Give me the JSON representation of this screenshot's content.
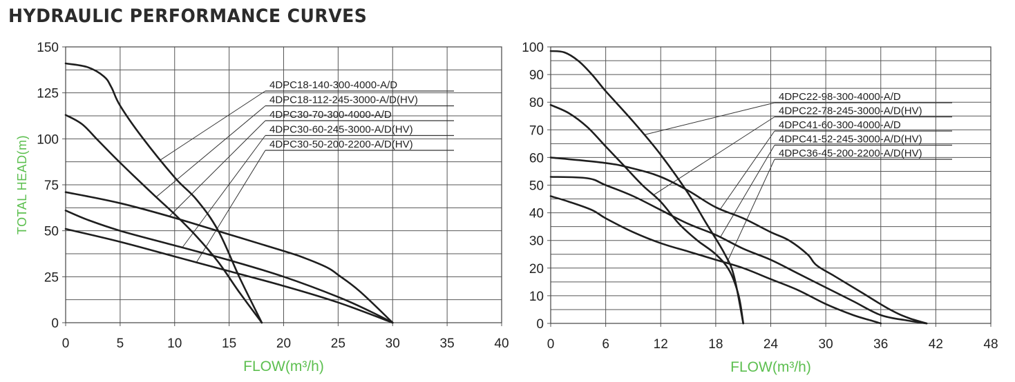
{
  "page": {
    "title": "HYDRAULIC PERFORMANCE CURVES"
  },
  "chart_data": [
    {
      "type": "line",
      "xlabel": "FLOW(m³/h)",
      "ylabel": "TOTAL HEAD(m)",
      "xlim": [
        0,
        40
      ],
      "ylim": [
        0,
        150
      ],
      "xticks": [
        0,
        5,
        10,
        15,
        20,
        25,
        30,
        35,
        40
      ],
      "yticks": [
        0,
        25,
        50,
        75,
        100,
        125,
        150
      ],
      "grid": true,
      "series": [
        {
          "name": "4DPC18-140-300-4000-A/D",
          "points": [
            [
              0,
              141
            ],
            [
              2,
              139
            ],
            [
              3.5,
              134
            ],
            [
              4.2,
              128
            ],
            [
              5,
              118
            ],
            [
              7,
              101
            ],
            [
              10,
              79
            ],
            [
              12,
              67
            ],
            [
              14,
              50
            ],
            [
              16,
              24
            ],
            [
              18,
              0
            ]
          ]
        },
        {
          "name": "4DPC18-112-245-3000-A/D(HV)",
          "points": [
            [
              0,
              113
            ],
            [
              1.5,
              108
            ],
            [
              3,
              99
            ],
            [
              5,
              87
            ],
            [
              8,
              70
            ],
            [
              10,
              59
            ],
            [
              12,
              47
            ],
            [
              14,
              33
            ],
            [
              16,
              16
            ],
            [
              18,
              0
            ]
          ]
        },
        {
          "name": "4DPC30-70-300-4000-A/D",
          "points": [
            [
              0,
              71
            ],
            [
              5,
              65
            ],
            [
              10,
              57
            ],
            [
              15,
              48
            ],
            [
              20,
              39
            ],
            [
              22,
              35
            ],
            [
              24,
              30
            ],
            [
              25,
              26
            ],
            [
              27,
              17
            ],
            [
              30,
              0
            ]
          ]
        },
        {
          "name": "4DPC30-60-245-3000-A/D(HV)",
          "points": [
            [
              0,
              61
            ],
            [
              2,
              56
            ],
            [
              5,
              50
            ],
            [
              10,
              42
            ],
            [
              15,
              34
            ],
            [
              20,
              25
            ],
            [
              25,
              14
            ],
            [
              28,
              6
            ],
            [
              30,
              0
            ]
          ]
        },
        {
          "name": "4DPC30-50-200-2200-A/D(HV)",
          "points": [
            [
              0,
              51
            ],
            [
              5,
              44
            ],
            [
              10,
              36
            ],
            [
              15,
              28
            ],
            [
              20,
              20
            ],
            [
              25,
              11
            ],
            [
              30,
              0
            ]
          ]
        }
      ]
    },
    {
      "type": "line",
      "xlabel": "FLOW(m³/h)",
      "ylabel": "",
      "xlim": [
        0,
        48
      ],
      "ylim": [
        0,
        100
      ],
      "xticks": [
        0,
        6,
        12,
        18,
        24,
        30,
        36,
        42,
        48
      ],
      "yticks": [
        0,
        10,
        20,
        30,
        40,
        50,
        60,
        70,
        80,
        90,
        100
      ],
      "grid": true,
      "series": [
        {
          "name": "4DPC22-98-300-4000-A/D",
          "points": [
            [
              0,
              98.5
            ],
            [
              1.5,
              98
            ],
            [
              3,
              95
            ],
            [
              4.5,
              90
            ],
            [
              6,
              84
            ],
            [
              9,
              73
            ],
            [
              12,
              61
            ],
            [
              15,
              47
            ],
            [
              17,
              36
            ],
            [
              19,
              25
            ],
            [
              20,
              17
            ],
            [
              21,
              0
            ]
          ]
        },
        {
          "name": "4DPC22-78-245-3000-A/D(HV)",
          "points": [
            [
              0,
              79
            ],
            [
              2,
              76
            ],
            [
              4,
              71
            ],
            [
              6,
              64
            ],
            [
              8,
              57
            ],
            [
              10,
              50
            ],
            [
              12,
              44
            ],
            [
              14,
              36
            ],
            [
              16,
              30
            ],
            [
              18,
              25
            ],
            [
              19.5,
              19
            ],
            [
              20.5,
              10
            ],
            [
              21,
              0
            ]
          ]
        },
        {
          "name": "4DPC41-60-300-4000-A/D",
          "points": [
            [
              0,
              60
            ],
            [
              6,
              58
            ],
            [
              9,
              56
            ],
            [
              12,
              53
            ],
            [
              15,
              48
            ],
            [
              18,
              42
            ],
            [
              21,
              38
            ],
            [
              24,
              33
            ],
            [
              26,
              30
            ],
            [
              28,
              25
            ],
            [
              29,
              21
            ],
            [
              31,
              17
            ],
            [
              34,
              11
            ],
            [
              37,
              5
            ],
            [
              39,
              2
            ],
            [
              41,
              0
            ]
          ]
        },
        {
          "name": "4DPC41-52-245-3000-A/D(HV)",
          "points": [
            [
              0,
              53
            ],
            [
              4,
              52.5
            ],
            [
              6,
              50
            ],
            [
              9,
              46
            ],
            [
              12,
              41
            ],
            [
              15,
              36
            ],
            [
              18,
              32
            ],
            [
              21,
              27
            ],
            [
              24,
              23
            ],
            [
              27,
              18
            ],
            [
              30,
              13
            ],
            [
              33,
              8
            ],
            [
              36,
              3
            ],
            [
              39,
              1
            ],
            [
              41,
              0
            ]
          ]
        },
        {
          "name": "4DPC36-45-200-2200-A/D(HV)",
          "points": [
            [
              0,
              46
            ],
            [
              2,
              44
            ],
            [
              4.5,
              41
            ],
            [
              6,
              38
            ],
            [
              9,
              33
            ],
            [
              12,
              29
            ],
            [
              15,
              26
            ],
            [
              18,
              23
            ],
            [
              21,
              20
            ],
            [
              24,
              16
            ],
            [
              27,
              12
            ],
            [
              30,
              7
            ],
            [
              33,
              3
            ],
            [
              35,
              1
            ],
            [
              36,
              0
            ]
          ]
        }
      ]
    }
  ]
}
